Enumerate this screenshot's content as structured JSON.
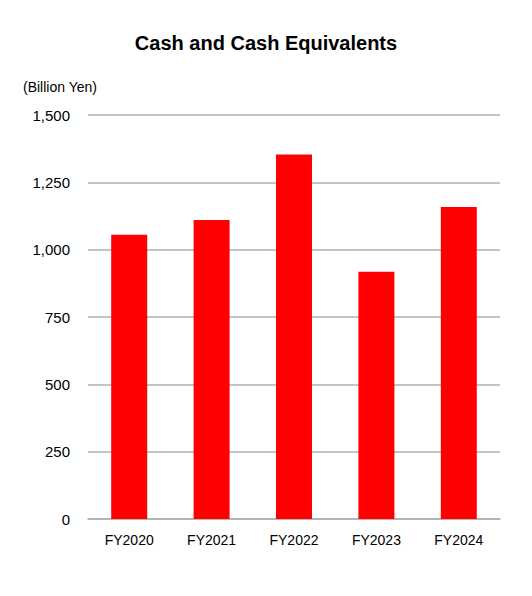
{
  "chart_data": {
    "type": "bar",
    "title": "Cash and Cash Equivalents",
    "ylabel": "(Billion Yen)",
    "categories": [
      "FY2020",
      "FY2021",
      "FY2022",
      "FY2023",
      "FY2024"
    ],
    "values": [
      1055,
      1110,
      1353,
      918,
      1158
    ],
    "color": "#ff0000",
    "ylim": [
      0,
      1500
    ],
    "yticks": [
      0,
      250,
      500,
      750,
      {
        "value": 1000,
        "label": "1,000"
      },
      {
        "value": 1250,
        "label": "1,250"
      },
      {
        "value": 1500,
        "label": "1,500"
      }
    ],
    "grid": true
  }
}
